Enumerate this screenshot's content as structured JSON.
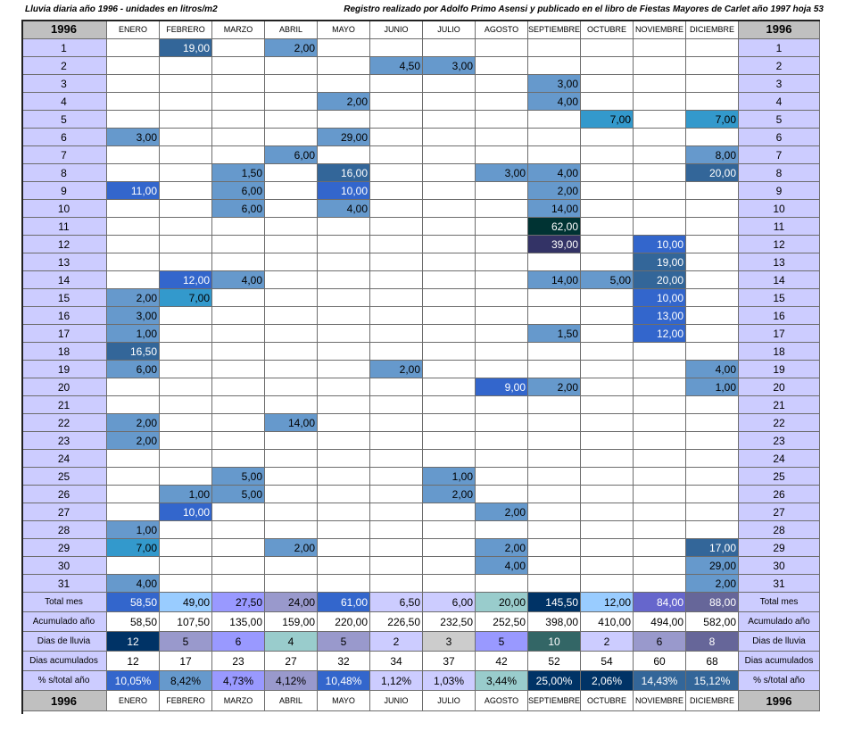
{
  "header": {
    "left": "Lluvia diaria año 1996 - unidades en litros/m2",
    "right": "Registro realizado por Adolfo Primo Asensi y publicado en el libro de Fiestas Mayores de Carlet año 1997 hoja 53"
  },
  "year": "1996",
  "months": [
    "ENERO",
    "FEBRERO",
    "MARZO",
    "ABRIL",
    "MAYO",
    "JUNIO",
    "JULIO",
    "AGOSTO",
    "SEPTIEMBRE",
    "OCTUBRE",
    "NOVIEMBRE",
    "DICIEMBRE"
  ],
  "days": [
    "1",
    "2",
    "3",
    "4",
    "5",
    "6",
    "7",
    "8",
    "9",
    "10",
    "11",
    "12",
    "13",
    "14",
    "15",
    "16",
    "17",
    "18",
    "19",
    "20",
    "21",
    "22",
    "23",
    "24",
    "25",
    "26",
    "27",
    "28",
    "29",
    "30",
    "31"
  ],
  "daily": [
    [
      "",
      "19,00",
      "",
      "2,00",
      "",
      "",
      "",
      "",
      "",
      "",
      "",
      ""
    ],
    [
      "",
      "",
      "",
      "",
      "",
      "4,50",
      "3,00",
      "",
      "",
      "",
      "",
      ""
    ],
    [
      "",
      "",
      "",
      "",
      "",
      "",
      "",
      "",
      "3,00",
      "",
      "",
      ""
    ],
    [
      "",
      "",
      "",
      "",
      "2,00",
      "",
      "",
      "",
      "4,00",
      "",
      "",
      ""
    ],
    [
      "",
      "",
      "",
      "",
      "",
      "",
      "",
      "",
      "",
      "7,00",
      "",
      "7,00"
    ],
    [
      "3,00",
      "",
      "",
      "",
      "29,00",
      "",
      "",
      "",
      "",
      "",
      "",
      ""
    ],
    [
      "",
      "",
      "",
      "6,00",
      "",
      "",
      "",
      "",
      "",
      "",
      "",
      "8,00"
    ],
    [
      "",
      "",
      "1,50",
      "",
      "16,00",
      "",
      "",
      "3,00",
      "4,00",
      "",
      "",
      "20,00"
    ],
    [
      "11,00",
      "",
      "6,00",
      "",
      "10,00",
      "",
      "",
      "",
      "2,00",
      "",
      "",
      ""
    ],
    [
      "",
      "",
      "6,00",
      "",
      "4,00",
      "",
      "",
      "",
      "14,00",
      "",
      "",
      ""
    ],
    [
      "",
      "",
      "",
      "",
      "",
      "",
      "",
      "",
      "62,00",
      "",
      "",
      ""
    ],
    [
      "",
      "",
      "",
      "",
      "",
      "",
      "",
      "",
      "39,00",
      "",
      "10,00",
      ""
    ],
    [
      "",
      "",
      "",
      "",
      "",
      "",
      "",
      "",
      "",
      "",
      "19,00",
      ""
    ],
    [
      "",
      "12,00",
      "4,00",
      "",
      "",
      "",
      "",
      "",
      "14,00",
      "5,00",
      "20,00",
      ""
    ],
    [
      "2,00",
      "7,00",
      "",
      "",
      "",
      "",
      "",
      "",
      "",
      "",
      "10,00",
      ""
    ],
    [
      "3,00",
      "",
      "",
      "",
      "",
      "",
      "",
      "",
      "",
      "",
      "13,00",
      ""
    ],
    [
      "1,00",
      "",
      "",
      "",
      "",
      "",
      "",
      "",
      "1,50",
      "",
      "12,00",
      ""
    ],
    [
      "16,50",
      "",
      "",
      "",
      "",
      "",
      "",
      "",
      "",
      "",
      "",
      ""
    ],
    [
      "6,00",
      "",
      "",
      "",
      "",
      "2,00",
      "",
      "",
      "",
      "",
      "",
      "4,00"
    ],
    [
      "",
      "",
      "",
      "",
      "",
      "",
      "",
      "9,00",
      "2,00",
      "",
      "",
      "1,00"
    ],
    [
      "",
      "",
      "",
      "",
      "",
      "",
      "",
      "",
      "",
      "",
      "",
      ""
    ],
    [
      "2,00",
      "",
      "",
      "14,00",
      "",
      "",
      "",
      "",
      "",
      "",
      "",
      ""
    ],
    [
      "2,00",
      "",
      "",
      "",
      "",
      "",
      "",
      "",
      "",
      "",
      "",
      ""
    ],
    [
      "",
      "",
      "",
      "",
      "",
      "",
      "",
      "",
      "",
      "",
      "",
      ""
    ],
    [
      "",
      "",
      "5,00",
      "",
      "",
      "",
      "1,00",
      "",
      "",
      "",
      "",
      ""
    ],
    [
      "",
      "1,00",
      "5,00",
      "",
      "",
      "",
      "2,00",
      "",
      "",
      "",
      "",
      ""
    ],
    [
      "",
      "10,00",
      "",
      "",
      "",
      "",
      "",
      "2,00",
      "",
      "",
      "",
      ""
    ],
    [
      "1,00",
      "",
      "",
      "",
      "",
      "",
      "",
      "",
      "",
      "",
      "",
      ""
    ],
    [
      "7,00",
      "",
      "",
      "2,00",
      "",
      "",
      "",
      "2,00",
      "",
      "",
      "",
      "17,00"
    ],
    [
      "",
      "",
      "",
      "",
      "",
      "",
      "",
      "4,00",
      "",
      "",
      "",
      "29,00"
    ],
    [
      "4,00",
      "",
      "",
      "",
      "",
      "",
      "",
      "",
      "",
      "",
      "",
      "2,00"
    ]
  ],
  "summary": [
    {
      "label": "Total mes",
      "values": [
        "58,50",
        "49,00",
        "27,50",
        "24,00",
        "61,00",
        "6,50",
        "6,00",
        "20,00",
        "145,50",
        "12,00",
        "84,00",
        "88,00"
      ]
    },
    {
      "label": "Acumulado año",
      "values": [
        "58,50",
        "107,50",
        "135,00",
        "159,00",
        "220,00",
        "226,50",
        "232,50",
        "252,50",
        "398,00",
        "410,00",
        "494,00",
        "582,00"
      ]
    },
    {
      "label": "Dias de lluvia",
      "values": [
        "12",
        "5",
        "6",
        "4",
        "5",
        "2",
        "3",
        "5",
        "10",
        "2",
        "6",
        "8"
      ]
    },
    {
      "label": "Dias acumulados",
      "values": [
        "12",
        "17",
        "23",
        "27",
        "32",
        "34",
        "37",
        "42",
        "52",
        "54",
        "60",
        "68"
      ]
    },
    {
      "label": "% s/total año",
      "values": [
        "10,05%",
        "8,42%",
        "4,73%",
        "4,12%",
        "10,48%",
        "1,12%",
        "1,03%",
        "3,44%",
        "25,00%",
        "2,06%",
        "14,43%",
        "15,12%"
      ]
    }
  ],
  "colors": {
    "header_bg": "#c0c0c0",
    "day_bg": "#ccccff",
    "rain_light": "#6699cc",
    "rain_blue": "#3366cc",
    "rain_mid": "#336699",
    "rain_bright": "#3399cc",
    "rain_dark_green": "#003333",
    "rain_dark_purple": "#333366",
    "total_colors": [
      "#3366cc",
      "#99ccff",
      "#9999ff",
      "#9999cc",
      "#3366cc",
      "#ccccff",
      "#ccccff",
      "#99cccc",
      "#003366",
      "#99ccff",
      "#6666cc",
      "#666699"
    ],
    "dias_colors": [
      "#003366",
      "#9999cc",
      "#9999ff",
      "#99cccc",
      "#9999cc",
      "#ccccff",
      "#cccccc",
      "#9999ff",
      "#336666",
      "#ccccff",
      "#9999cc",
      "#666699"
    ],
    "pct_colors": [
      "#3366cc",
      "#6699cc",
      "#9999ff",
      "#9999cc",
      "#3366cc",
      "#ccccff",
      "#ccccff",
      "#99cccc",
      "#003366",
      "#003366",
      "#336699",
      "#336699"
    ]
  }
}
